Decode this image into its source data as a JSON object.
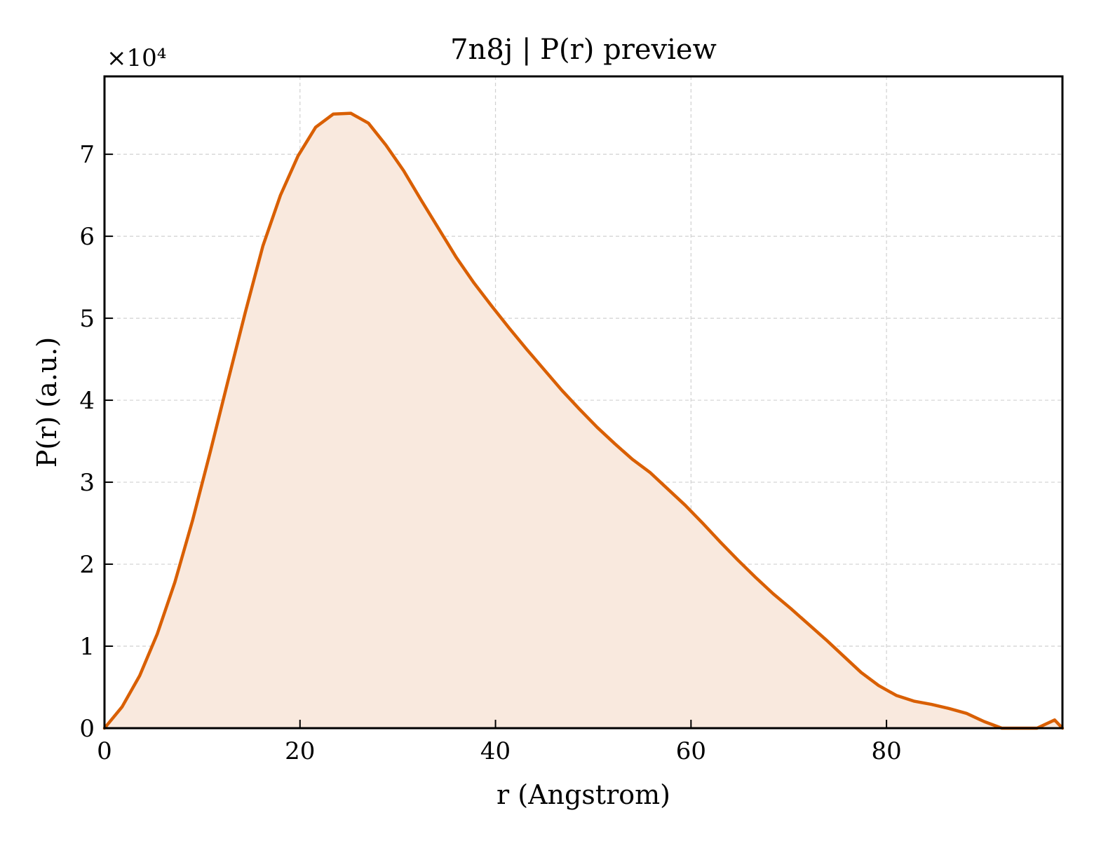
{
  "chart_data": {
    "type": "area",
    "title": "7n8j | P(r) preview",
    "xlabel": "r (Angstrom)",
    "ylabel": "P(r) (a.u.)",
    "y_multiplier_label": "×10⁴",
    "y_multiplier": 10000,
    "xlim": [
      0,
      98
    ],
    "ylim": [
      0,
      7.95
    ],
    "xticks": [
      0,
      20,
      40,
      60,
      80
    ],
    "xtick_labels": [
      "0",
      "20",
      "40",
      "60",
      "80"
    ],
    "yticks": [
      0,
      1,
      2,
      3,
      4,
      5,
      6,
      7
    ],
    "ytick_labels": [
      "0",
      "1",
      "2",
      "3",
      "4",
      "5",
      "6",
      "7"
    ],
    "grid": true,
    "line_color": "#d95f02",
    "fill_color": "#f9e9de",
    "series": [
      {
        "x": [
          0,
          1.8,
          3.6,
          5.4,
          7.2,
          9.0,
          10.8,
          12.6,
          14.4,
          16.2,
          18.0,
          19.8,
          21.6,
          23.4,
          25.2,
          27.0,
          28.8,
          30.6,
          32.4,
          34.2,
          36.0,
          37.8,
          39.6,
          41.4,
          43.2,
          45.0,
          46.8,
          48.6,
          50.4,
          52.2,
          54.0,
          55.8,
          57.6,
          59.4,
          61.2,
          63.0,
          64.8,
          66.6,
          68.4,
          70.2,
          72.0,
          73.8,
          75.6,
          77.4,
          79.2,
          81.0,
          82.8,
          84.6,
          86.4,
          88.2,
          90.0,
          91.8,
          93.6,
          95.4,
          97.2,
          98.0
        ],
        "values": [
          0.0,
          0.26,
          0.64,
          1.15,
          1.78,
          2.53,
          3.36,
          4.22,
          5.07,
          5.88,
          6.5,
          6.98,
          7.33,
          7.49,
          7.5,
          7.38,
          7.11,
          6.8,
          6.44,
          6.09,
          5.74,
          5.43,
          5.15,
          4.88,
          4.62,
          4.37,
          4.12,
          3.89,
          3.67,
          3.47,
          3.28,
          3.12,
          2.92,
          2.72,
          2.5,
          2.27,
          2.05,
          1.84,
          1.64,
          1.46,
          1.27,
          1.08,
          0.88,
          0.68,
          0.52,
          0.4,
          0.33,
          0.29,
          0.24,
          0.18,
          0.08,
          0.0,
          0.0,
          0.0,
          0.1,
          0.0
        ]
      }
    ]
  }
}
